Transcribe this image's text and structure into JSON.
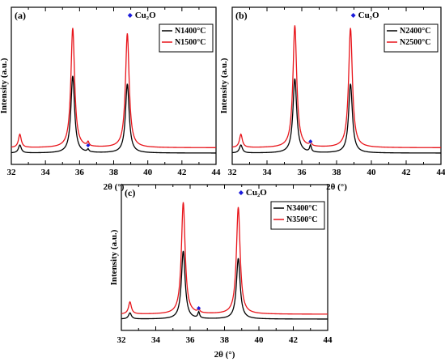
{
  "chart_data": [
    {
      "type": "line",
      "panel_label": "(a)",
      "xlabel": "2θ (°)",
      "ylabel": "Intensity (a.u.)",
      "xlim": [
        32,
        44
      ],
      "xticks": [
        "32",
        "34",
        "36",
        "38",
        "40",
        "42",
        "44"
      ],
      "y_ticks_shown": false,
      "marker_label": "Cu₂O",
      "marker_2theta": 36.5,
      "legend_position": "top-right",
      "series": [
        {
          "name": "N1400°C",
          "color": "#000000",
          "peaks": [
            {
              "x": 32.5,
              "height": 0.06
            },
            {
              "x": 35.6,
              "height": 0.58
            },
            {
              "x": 36.5,
              "height": 0.02
            },
            {
              "x": 38.8,
              "height": 0.52
            }
          ],
          "baseline": 0.0
        },
        {
          "name": "N1500°C",
          "color": "#e8141a",
          "peaks": [
            {
              "x": 32.5,
              "height": 0.1
            },
            {
              "x": 35.6,
              "height": 0.9
            },
            {
              "x": 36.5,
              "height": 0.03
            },
            {
              "x": 38.8,
              "height": 0.86
            }
          ],
          "baseline": 0.04
        }
      ]
    },
    {
      "type": "line",
      "panel_label": "(b)",
      "xlabel": "2θ (°)",
      "ylabel": "Intensity (a.u.)",
      "xlim": [
        32,
        44
      ],
      "xticks": [
        "32",
        "34",
        "36",
        "38",
        "40",
        "42",
        "44"
      ],
      "y_ticks_shown": false,
      "marker_label": "Cu₂O",
      "marker_2theta": 36.5,
      "legend_position": "top-right",
      "series": [
        {
          "name": "N2400°C",
          "color": "#000000",
          "peaks": [
            {
              "x": 32.5,
              "height": 0.06
            },
            {
              "x": 35.6,
              "height": 0.56
            },
            {
              "x": 36.5,
              "height": 0.05
            },
            {
              "x": 38.8,
              "height": 0.52
            }
          ],
          "baseline": 0.0
        },
        {
          "name": "N2500°C",
          "color": "#e8141a",
          "peaks": [
            {
              "x": 32.5,
              "height": 0.1
            },
            {
              "x": 35.6,
              "height": 0.92
            },
            {
              "x": 36.5,
              "height": 0.03
            },
            {
              "x": 38.8,
              "height": 0.9
            }
          ],
          "baseline": 0.04
        }
      ]
    },
    {
      "type": "line",
      "panel_label": "(c)",
      "xlabel": "2θ (°)",
      "ylabel": "Intensity (a.u.)",
      "xlim": [
        32,
        44
      ],
      "xticks": [
        "32",
        "34",
        "36",
        "38",
        "40",
        "42",
        "44"
      ],
      "y_ticks_shown": false,
      "marker_label": "Cu₂O",
      "marker_2theta": 36.5,
      "legend_position": "top-right",
      "series": [
        {
          "name": "N3400°C",
          "color": "#000000",
          "peaks": [
            {
              "x": 32.5,
              "height": 0.05
            },
            {
              "x": 35.6,
              "height": 0.56
            },
            {
              "x": 36.5,
              "height": 0.05
            },
            {
              "x": 38.8,
              "height": 0.5
            }
          ],
          "baseline": 0.0
        },
        {
          "name": "N3500°C",
          "color": "#e8141a",
          "peaks": [
            {
              "x": 32.5,
              "height": 0.1
            },
            {
              "x": 35.6,
              "height": 0.92
            },
            {
              "x": 36.5,
              "height": 0.03
            },
            {
              "x": 38.8,
              "height": 0.88
            }
          ],
          "baseline": 0.04
        }
      ]
    }
  ]
}
